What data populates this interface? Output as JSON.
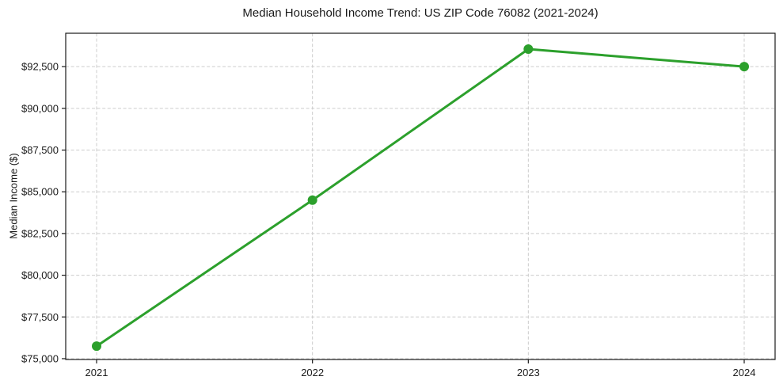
{
  "chart_data": {
    "type": "line",
    "title": "Median Household Income Trend: US ZIP Code 76082 (2021-2024)",
    "xlabel": "",
    "ylabel": "Median Income ($)",
    "categories": [
      "2021",
      "2022",
      "2023",
      "2024"
    ],
    "series": [
      {
        "name": "Median Household Income",
        "values": [
          75750,
          84500,
          93550,
          92500
        ]
      }
    ],
    "yticks": [
      75000,
      77500,
      80000,
      82500,
      85000,
      87500,
      90000,
      92500
    ],
    "ytick_labels": [
      "$75,000",
      "$77,500",
      "$80,000",
      "$82,500",
      "$85,000",
      "$87,500",
      "$90,000",
      "$92,500"
    ],
    "ylim": [
      74950,
      94500
    ],
    "grid": "dashed-both-axes",
    "legend_position": "none",
    "colors": {
      "line": "#2ca02c",
      "marker": "#2ca02c",
      "grid": "#cccccc",
      "spine": "#1a1a1a",
      "text": "#1a1a1a",
      "background": "#ffffff"
    }
  }
}
